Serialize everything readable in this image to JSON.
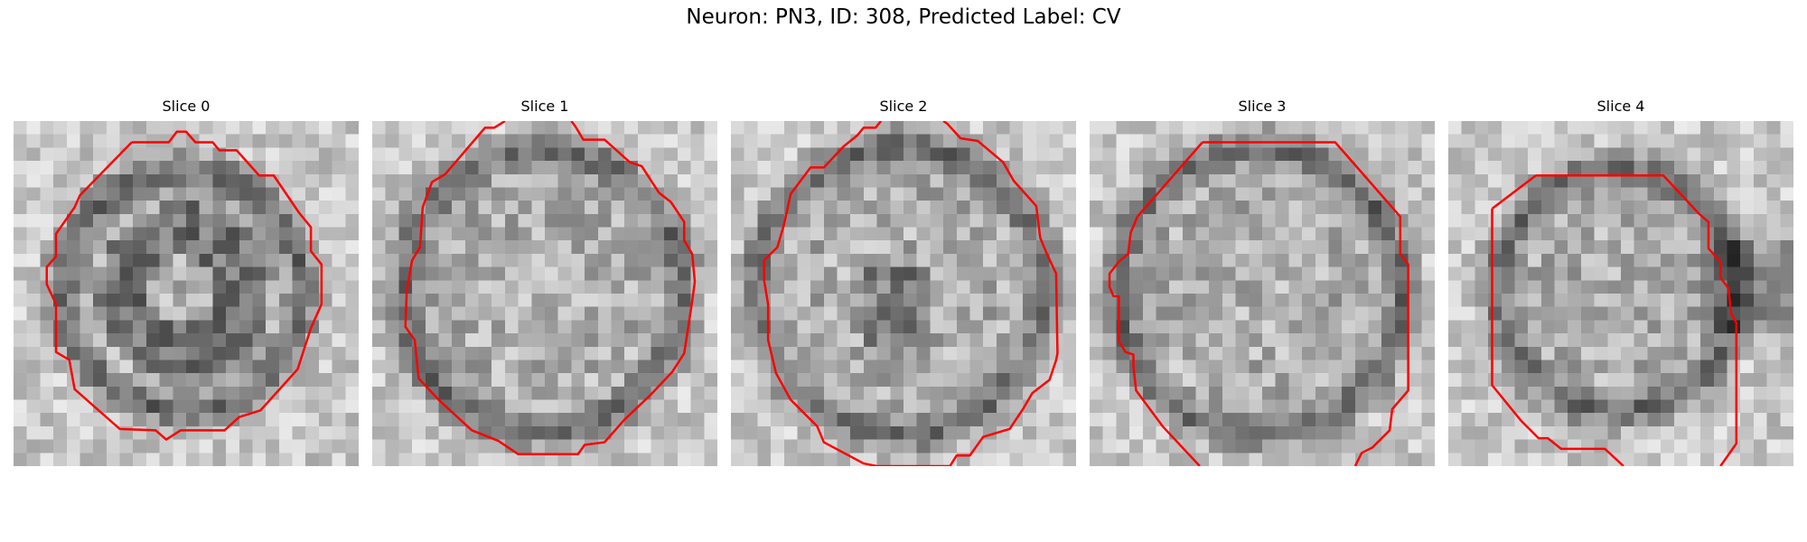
{
  "figure": {
    "title": "Neuron: PN3, ID: 308, Predicted Label: CV"
  },
  "contour_color": "#ff0000",
  "panels": [
    {
      "title": "Slice 0"
    },
    {
      "title": "Slice 1"
    },
    {
      "title": "Slice 2"
    },
    {
      "title": "Slice 3"
    },
    {
      "title": "Slice 4"
    }
  ]
}
